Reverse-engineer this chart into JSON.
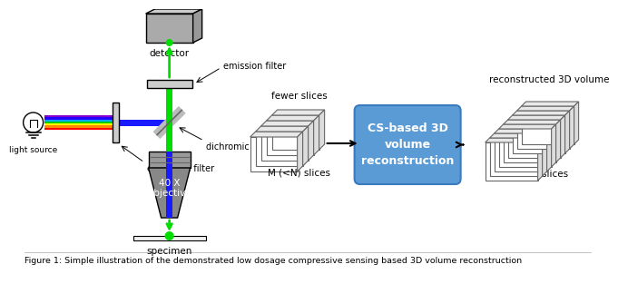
{
  "title": "Figure 1: Simple illustration of the demonstrated low dosage compressive sensing based 3D volume reconstruction",
  "bg_color": "#ffffff",
  "labels": {
    "detector": "detector",
    "emission_filter": "emission filter",
    "dichromic_mirror": "dichromic mirror",
    "fewer_slices": "fewer slices",
    "light_source": "light source",
    "excitation_filter": "excitation filter",
    "objective": "40 X\nObjective",
    "specimen": "specimen",
    "m_slices": "M (<N) slices",
    "cs_box": "CS-based 3D\nvolume\nreconstruction",
    "recon_volume": "reconstructed 3D volume",
    "n_slices": "N slices"
  },
  "colors": {
    "green": "#00dd00",
    "blue": "#1a1aff",
    "blue_box": "#5b9bd5",
    "blue_box_edge": "#3a7abf",
    "gray_obj": "#888888",
    "gray_det": "#aaaaaa",
    "gray_filter": "#cccccc",
    "black": "#000000",
    "white": "#ffffff"
  }
}
